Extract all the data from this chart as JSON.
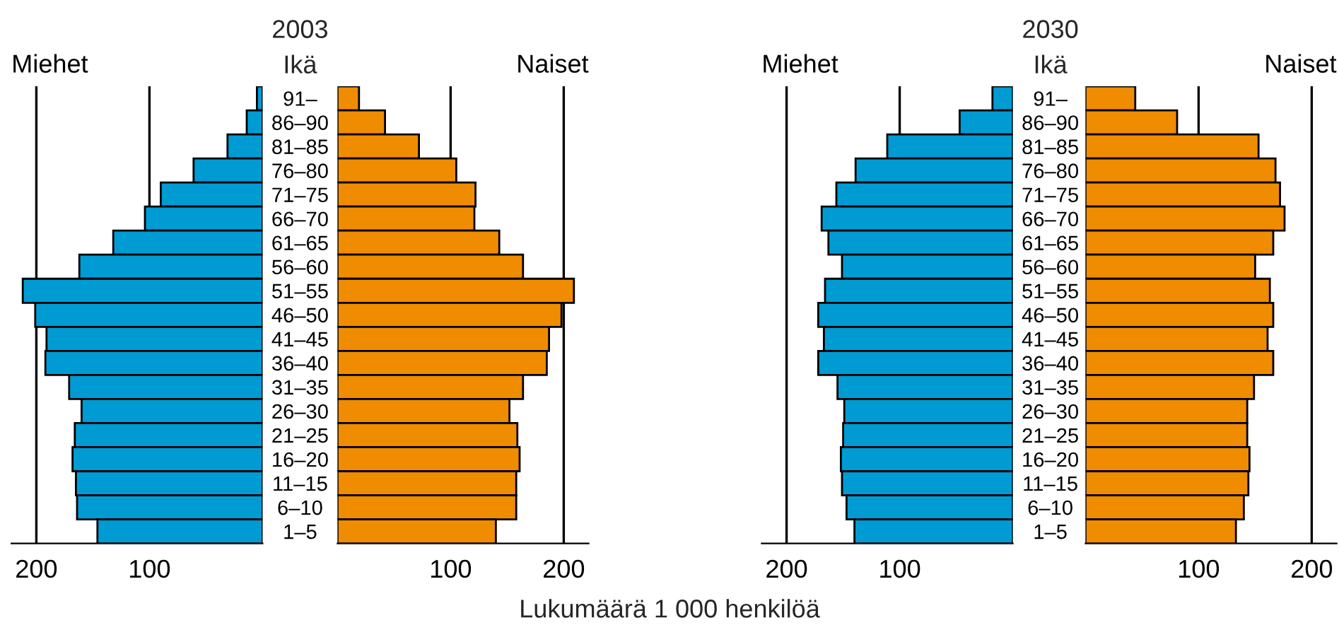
{
  "chart_data": [
    {
      "type": "bar",
      "orientation": "horizontal",
      "title": "Miehet",
      "annotations": [
        "2003",
        "Ikä"
      ],
      "categories": [
        "91–",
        "86–90",
        "81–85",
        "76–80",
        "71–75",
        "66–70",
        "61–65",
        "56–60",
        "51–55",
        "46–50",
        "41–45",
        "36–40",
        "31–35",
        "26–30",
        "21–25",
        "16–20",
        "11–15",
        "6–10",
        "1–5"
      ],
      "series": [
        {
          "color": "#009bd3",
          "values": [
            5,
            14,
            31,
            61,
            90,
            104,
            132,
            162,
            212,
            201,
            191,
            192,
            171,
            160,
            166,
            168,
            165,
            164,
            146
          ]
        }
      ],
      "xlim": [
        222,
        0
      ],
      "xticks": [
        200,
        100
      ],
      "grid": "x"
    },
    {
      "type": "bar",
      "orientation": "horizontal",
      "title": "Naiset",
      "tick_labels": "x",
      "annotations": [
        "Lukumäärä 1 000 henkilöä"
      ],
      "series": [
        {
          "color": "#f08c00",
          "values": [
            19,
            42,
            72,
            105,
            122,
            121,
            143,
            164,
            209,
            198,
            187,
            185,
            164,
            152,
            159,
            161,
            158,
            158,
            140
          ]
        }
      ],
      "xlim": [
        0,
        222
      ],
      "xticks": [
        100,
        200
      ],
      "grid": "x"
    },
    {
      "type": "bar",
      "orientation": "horizontal",
      "title": "Miehet",
      "annotations": [
        "2030",
        "Ikä"
      ],
      "categories": [
        "91–",
        "86–90",
        "81–85",
        "76–80",
        "71–75",
        "66–70",
        "61–65",
        "56–60",
        "51–55",
        "46–50",
        "41–45",
        "36–40",
        "31–35",
        "26–30",
        "21–25",
        "16–20",
        "11–15",
        "6–10",
        "1–5"
      ],
      "series": [
        {
          "color": "#009bd3",
          "values": [
            18,
            47,
            111,
            139,
            156,
            169,
            163,
            151,
            166,
            172,
            167,
            172,
            155,
            149,
            150,
            152,
            151,
            147,
            140
          ]
        }
      ],
      "xlim": [
        222,
        0
      ],
      "xticks": [
        200,
        100
      ],
      "grid": "x"
    },
    {
      "type": "bar",
      "orientation": "horizontal",
      "title": "Naiset",
      "tick_labels": "x",
      "series": [
        {
          "color": "#f08c00",
          "values": [
            44,
            81,
            153,
            168,
            172,
            176,
            166,
            150,
            163,
            166,
            161,
            166,
            149,
            143,
            143,
            145,
            144,
            140,
            133
          ]
        }
      ],
      "xlim": [
        0,
        222
      ],
      "xticks": [
        100,
        200
      ],
      "grid": "x"
    }
  ]
}
